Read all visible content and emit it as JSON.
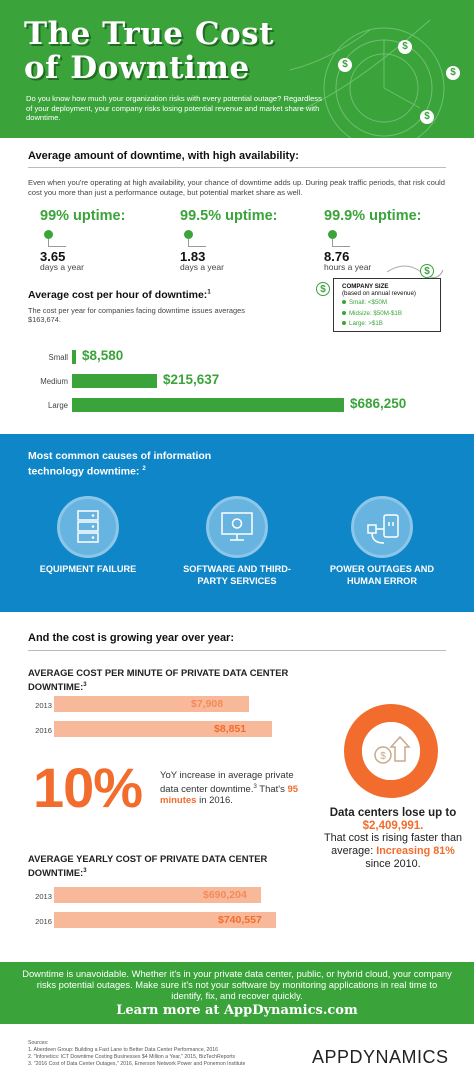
{
  "header": {
    "title_line1": "The True Cost",
    "title_line2": "of Downtime",
    "intro": "Do you know how much your organization risks with every potential outage? Regardless of your deployment, your company risks losing potential revenue and market share with downtime."
  },
  "availability": {
    "heading": "Average amount of downtime, with high availability:",
    "body": "Even when you're operating at high availability, your chance of downtime adds up. During peak traffic periods, that risk could cost you more than just a performance outage, but potential market share as well.",
    "items": [
      {
        "uptime": "99% uptime:",
        "value": "3.65",
        "unit": "days a year"
      },
      {
        "uptime": "99.5% uptime:",
        "value": "1.83",
        "unit": "days a year"
      },
      {
        "uptime": "99.9% uptime:",
        "value": "8.76",
        "unit": "hours a year"
      }
    ]
  },
  "cost_per_hour": {
    "heading": "Average cost per hour of downtime:",
    "heading_sup": "1",
    "body": "The cost per year for companies facing downtime issues averages $163,674.",
    "legend": {
      "title": "COMPANY SIZE",
      "subtitle": "(based on annual revenue)",
      "items": [
        "Small: <$50M",
        "Midsize: $50M-$1B",
        "Large: >$1B"
      ]
    },
    "bars": [
      {
        "label": "Small",
        "value": 8580,
        "display": "$8,580"
      },
      {
        "label": "Medium",
        "value": 215637,
        "display": "$215,637"
      },
      {
        "label": "Large",
        "value": 686250,
        "display": "$686,250"
      }
    ]
  },
  "causes": {
    "heading": "Most common causes of information technology downtime:",
    "heading_sup": "2",
    "items": [
      {
        "label": "EQUIPMENT FAILURE",
        "icon": "server-rack-icon"
      },
      {
        "label": "SOFTWARE AND THIRD-PARTY SERVICES",
        "icon": "monitor-gear-icon"
      },
      {
        "label": "POWER OUTAGES AND HUMAN ERROR",
        "icon": "power-plug-icon"
      }
    ]
  },
  "growth": {
    "heading": "And the cost is growing year over year:",
    "per_minute": {
      "heading": "AVERAGE COST PER MINUTE OF PRIVATE DATA CENTER DOWNTIME:",
      "sup": "3",
      "rows": [
        {
          "year": "2013",
          "value": 7908,
          "display": "$7,908"
        },
        {
          "year": "2016",
          "value": 8851,
          "display": "$8,851"
        }
      ]
    },
    "percent": "10%",
    "yoy_text": "YoY increase in average private data center downtime.",
    "yoy_sup": "3",
    "yoy_text2": "That's",
    "yoy_highlight": "95 minutes",
    "yoy_text3": "in 2016.",
    "per_year": {
      "heading": "AVERAGE YEARLY COST OF PRIVATE DATA CENTER DOWNTIME:",
      "sup": "3",
      "rows": [
        {
          "year": "2013",
          "value": 690204,
          "display": "$690,204"
        },
        {
          "year": "2016",
          "value": 740557,
          "display": "$740,557"
        }
      ]
    },
    "loss_heading": "Data centers lose up to",
    "loss_value": "$2,409,991.",
    "loss_text": "That cost is rising faster than average:",
    "loss_highlight": "Increasing 81%",
    "loss_text2": "since 2010."
  },
  "footer": {
    "text": "Downtime is unavoidable. Whether it's in your private data center, public, or hybrid cloud, your company risks potential outages. Make sure it's not your software by monitoring applications in real time to identify, fix, and recover quickly.",
    "cta": "Learn more at AppDynamics.com",
    "sources_title": "Sources:",
    "sources": [
      "1. Aberdeen Group: Building a Fast Lane to Better Data Center Performance, 2016",
      "2. \"Infonetics: ICT Downtime Costing Businesses $4 Million a Year,\" 2015, BizTechReports",
      "3. \"2016 Cost of Data Center Outages,\" 2016, Emerson Network Power and Ponemon Institute"
    ],
    "logo_a": "APP",
    "logo_b": "DYNAMICS"
  },
  "colors": {
    "green": "#3aa43b",
    "blue": "#0f86c7",
    "orange": "#f26c2d",
    "light_orange": "#f8b99a"
  }
}
